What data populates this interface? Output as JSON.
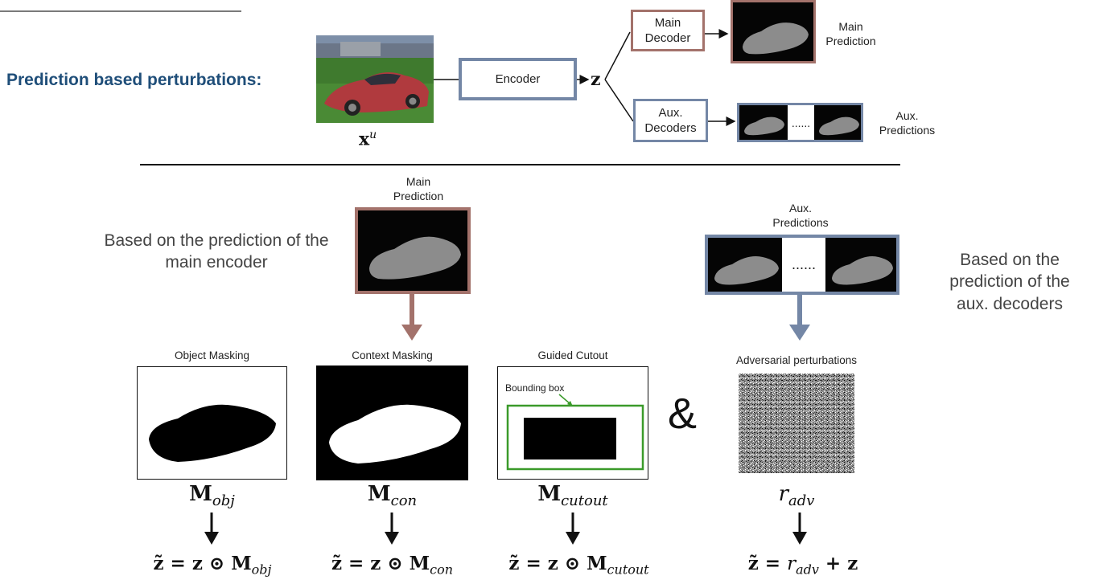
{
  "section_title": "Prediction based perturbations:",
  "top": {
    "input_label": "x",
    "input_sup": "u",
    "encoder_label": "Encoder",
    "z_label": "z",
    "main_decoder_label": "Main\nDecoder",
    "main_prediction_label": "Main\nPrediction",
    "aux_decoders_label": "Aux.\nDecoders",
    "aux_predictions_label": "Aux.\nPredictions",
    "ellipsis": "......"
  },
  "bottom": {
    "main_prediction_label": "Main\nPrediction",
    "aux_predictions_label": "Aux.\nPredictions",
    "left_note": "Based on the prediction of the\nmain encoder",
    "right_note": "Based on the\nprediction of the\naux. decoders",
    "ellipsis": "......",
    "ampersand": "&",
    "panels": [
      {
        "title": "Object Masking",
        "mask_base": "M",
        "mask_sub": "obj",
        "formula_lhs": "z̃ = z ⊙ ",
        "formula_base": "M",
        "formula_sub": "obj"
      },
      {
        "title": "Context Masking",
        "mask_base": "M",
        "mask_sub": "con",
        "formula_lhs": "z̃ = z ⊙ ",
        "formula_base": "M",
        "formula_sub": "con"
      },
      {
        "title": "Guided Cutout",
        "mask_base": "M",
        "mask_sub": "cutout",
        "formula_lhs": "z̃ = z ⊙ ",
        "formula_base": "M",
        "formula_sub": "cutout"
      },
      {
        "title": "Adversarial perturbations",
        "mask_base": "r",
        "mask_sub": "adv",
        "formula_lhs": "z̃ = ",
        "formula_base": "r",
        "formula_sub": "adv",
        "formula_rhs": " + z"
      }
    ],
    "bounding_box_label": "Bounding box"
  },
  "colors": {
    "title": "#1f4e79",
    "main_branch": "#a3726b",
    "aux_branch": "#7487a6",
    "encoder_border": "#7487a6",
    "bbox": "#3a9a2a"
  }
}
